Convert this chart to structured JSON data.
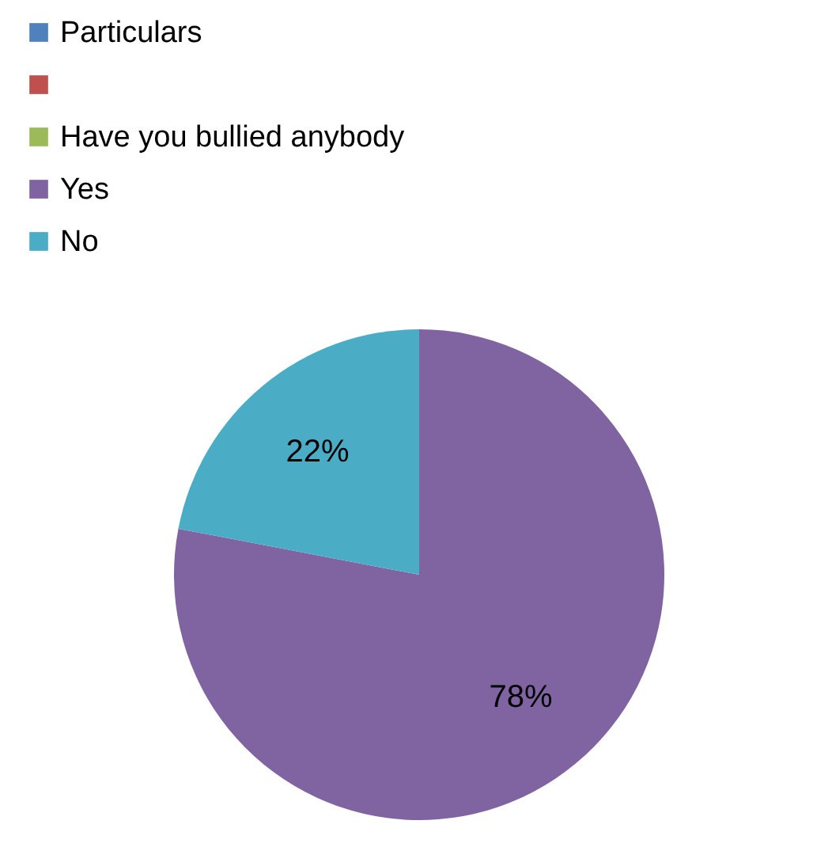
{
  "chart_data": {
    "type": "pie",
    "categories": [
      "Particulars",
      null,
      "Have you bullied anybody",
      "Yes",
      "No"
    ],
    "values": [
      0,
      0,
      0,
      78,
      22
    ],
    "colors": [
      "#4f81bd",
      "#c0504d",
      "#9bbb59",
      "#8064a2",
      "#4bacc6"
    ],
    "value_labels": [
      null,
      null,
      null,
      "78%",
      "22%"
    ],
    "legend": "top"
  }
}
